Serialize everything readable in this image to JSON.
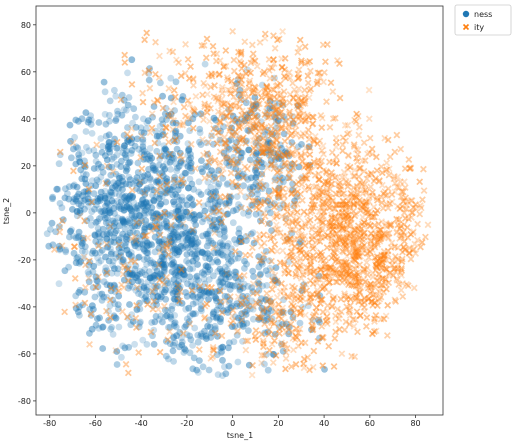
{
  "chart_data": {
    "type": "scatter",
    "xlabel": "tsne_1",
    "ylabel": "tsne_2",
    "xlim": [
      -86,
      92
    ],
    "ylim": [
      -86,
      88
    ],
    "xticks": [
      "-80",
      "-60",
      "-40",
      "-20",
      "0",
      "20",
      "40",
      "60",
      "80"
    ],
    "yticks": [
      "-80",
      "-60",
      "-40",
      "-20",
      "0",
      "20",
      "40",
      "60",
      "80"
    ],
    "legend_position": "outside-top-right",
    "series": [
      {
        "name": "ness",
        "marker": "circle",
        "color": "#1f77b4",
        "clusters": [
          {
            "cx": -40,
            "cy": 0,
            "sx": 20,
            "sy": 25,
            "n": 1100
          },
          {
            "cx": -15,
            "cy": -30,
            "sx": 18,
            "sy": 18,
            "n": 400
          },
          {
            "cx": 10,
            "cy": 25,
            "sx": 10,
            "sy": 15,
            "n": 200
          },
          {
            "cx": 10,
            "cy": -45,
            "sx": 15,
            "sy": 12,
            "n": 100
          }
        ],
        "bounds": {
          "r": 82,
          "xmin": -82,
          "xmax": 50,
          "ymin": -72,
          "ymax": 72
        }
      },
      {
        "name": "ity",
        "marker": "x",
        "color": "#ff7f0e",
        "clusters": [
          {
            "cx": 50,
            "cy": -10,
            "sx": 18,
            "sy": 20,
            "n": 1100
          },
          {
            "cx": 15,
            "cy": 40,
            "sx": 15,
            "sy": 18,
            "n": 500
          },
          {
            "cx": -40,
            "cy": -20,
            "sx": 20,
            "sy": 30,
            "n": 150
          },
          {
            "cx": -20,
            "cy": 50,
            "sx": 15,
            "sy": 15,
            "n": 100
          },
          {
            "cx": 20,
            "cy": -45,
            "sx": 15,
            "sy": 12,
            "n": 150
          }
        ],
        "bounds": {
          "r": 86,
          "xmin": -78,
          "xmax": 88,
          "ymin": -70,
          "ymax": 78
        }
      }
    ]
  }
}
